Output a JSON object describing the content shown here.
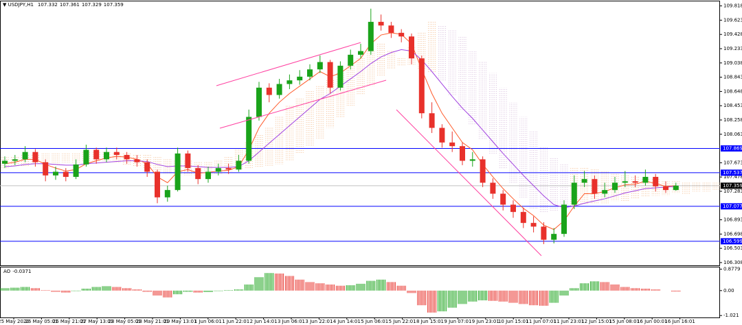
{
  "chart_data": {
    "type": "candlestick",
    "title": "USDJPY,H1",
    "quote": [
      107.332,
      107.361,
      107.329,
      107.359
    ],
    "open": [
      107.66,
      107.7,
      107.72,
      107.82,
      107.68,
      107.5,
      107.55,
      107.48,
      107.65,
      107.85,
      107.72,
      107.82,
      107.78,
      107.72,
      107.68,
      107.55,
      107.2,
      107.3,
      107.8,
      107.6,
      107.45,
      107.55,
      107.6,
      107.58,
      107.7,
      108.3,
      108.7,
      108.6,
      108.75,
      108.8,
      108.85,
      108.95,
      109.05,
      108.7,
      109.0,
      109.15,
      109.2,
      109.6,
      109.55,
      109.45,
      109.4,
      109.1,
      108.35,
      108.15,
      107.95,
      107.9,
      107.7,
      107.72,
      107.4,
      107.25,
      107.1,
      107.0,
      106.85,
      106.8,
      106.62,
      106.7,
      107.1,
      107.4,
      107.45,
      107.25,
      107.3,
      107.4,
      107.42,
      107.4,
      107.48,
      107.35,
      107.3
    ],
    "high": [
      107.76,
      107.78,
      107.9,
      107.86,
      107.72,
      107.62,
      107.6,
      107.72,
      107.92,
      107.88,
      107.88,
      107.88,
      107.82,
      107.78,
      107.72,
      107.58,
      107.36,
      107.88,
      107.84,
      107.64,
      107.62,
      107.66,
      107.66,
      107.78,
      108.4,
      108.78,
      108.76,
      108.82,
      108.88,
      108.94,
      109.02,
      109.14,
      109.08,
      109.06,
      109.22,
      109.3,
      109.78,
      109.7,
      109.6,
      109.5,
      109.44,
      109.14,
      108.5,
      108.2,
      108.1,
      107.95,
      107.82,
      107.76,
      107.46,
      107.3,
      107.16,
      107.06,
      106.94,
      106.86,
      106.78,
      107.16,
      107.5,
      107.56,
      107.5,
      107.4,
      107.48,
      107.56,
      107.5,
      107.58,
      107.52,
      107.42,
      107.4
    ],
    "low": [
      107.6,
      107.64,
      107.68,
      107.62,
      107.42,
      107.44,
      107.42,
      107.45,
      107.62,
      107.66,
      107.68,
      107.72,
      107.66,
      107.62,
      107.48,
      107.12,
      107.14,
      107.28,
      107.55,
      107.38,
      107.4,
      107.5,
      107.52,
      107.55,
      107.66,
      108.25,
      108.5,
      108.55,
      108.68,
      108.74,
      108.8,
      108.9,
      108.62,
      108.66,
      108.95,
      109.1,
      109.15,
      109.48,
      109.38,
      109.32,
      109.02,
      108.28,
      108.08,
      107.88,
      107.82,
      107.64,
      107.62,
      107.34,
      107.18,
      107.02,
      106.92,
      106.78,
      106.72,
      106.56,
      106.57,
      106.66,
      107.04,
      107.34,
      107.18,
      107.2,
      107.26,
      107.34,
      107.34,
      107.36,
      107.28,
      107.26,
      107.29
    ],
    "close": [
      107.7,
      107.72,
      107.82,
      107.68,
      107.5,
      107.55,
      107.48,
      107.65,
      107.85,
      107.72,
      107.82,
      107.78,
      107.72,
      107.68,
      107.55,
      107.2,
      107.3,
      107.8,
      107.6,
      107.45,
      107.55,
      107.6,
      107.58,
      107.7,
      108.3,
      108.7,
      108.6,
      108.75,
      108.8,
      108.85,
      108.95,
      109.05,
      108.7,
      109.0,
      109.15,
      109.2,
      109.6,
      109.55,
      109.45,
      109.4,
      109.1,
      108.35,
      108.15,
      107.95,
      107.9,
      107.7,
      107.72,
      107.4,
      107.25,
      107.1,
      107.0,
      106.85,
      106.8,
      106.62,
      106.7,
      107.1,
      107.4,
      107.45,
      107.25,
      107.3,
      107.4,
      107.42,
      107.4,
      107.48,
      107.35,
      107.3,
      107.36
    ],
    "up_color": "#1aa31a",
    "down_color": "#e8312b",
    "moving_averages": [
      {
        "color": "#ff5a2a",
        "values": [
          107.66,
          107.68,
          107.72,
          107.72,
          107.65,
          107.6,
          107.56,
          107.58,
          107.66,
          107.7,
          107.74,
          107.76,
          107.75,
          107.72,
          107.66,
          107.48,
          107.4,
          107.55,
          107.58,
          107.53,
          107.54,
          107.56,
          107.57,
          107.62,
          107.85,
          108.15,
          108.35,
          108.5,
          108.62,
          108.72,
          108.82,
          108.92,
          108.85,
          108.9,
          109.0,
          109.1,
          109.3,
          109.42,
          109.45,
          109.43,
          109.3,
          108.95,
          108.62,
          108.35,
          108.15,
          107.95,
          107.85,
          107.65,
          107.48,
          107.32,
          107.18,
          107.05,
          106.95,
          106.82,
          106.76,
          106.88,
          107.08,
          107.25,
          107.25,
          107.28,
          107.33,
          107.37,
          107.38,
          107.42,
          107.39,
          107.35,
          107.36
        ]
      },
      {
        "color": "#a040e0",
        "values": [
          107.62,
          107.63,
          107.65,
          107.66,
          107.66,
          107.65,
          107.64,
          107.64,
          107.66,
          107.67,
          107.68,
          107.69,
          107.7,
          107.7,
          107.69,
          107.65,
          107.62,
          107.63,
          107.63,
          107.62,
          107.61,
          107.61,
          107.61,
          107.62,
          107.7,
          107.82,
          107.94,
          108.06,
          108.18,
          108.3,
          108.42,
          108.54,
          108.62,
          108.72,
          108.82,
          108.92,
          109.03,
          109.12,
          109.18,
          109.22,
          109.2,
          109.08,
          108.92,
          108.75,
          108.58,
          108.42,
          108.28,
          108.12,
          107.96,
          107.8,
          107.65,
          107.5,
          107.36,
          107.22,
          107.1,
          107.06,
          107.08,
          107.12,
          107.15,
          107.18,
          107.22,
          107.26,
          107.29,
          107.32,
          107.33,
          107.34,
          107.35
        ]
      }
    ],
    "cloud": {
      "bull_color": "#f2b27c",
      "bear_color": "#cfb0d6",
      "span_a": [
        107.75,
        107.75,
        107.78,
        107.78,
        107.8,
        107.8,
        107.8,
        107.8,
        107.82,
        107.82,
        107.82,
        107.8,
        107.8,
        107.78,
        107.78,
        107.75,
        107.72,
        107.7,
        107.7,
        107.68,
        107.68,
        107.7,
        107.75,
        107.85,
        107.95,
        108.05,
        108.15,
        108.3,
        108.45,
        108.55,
        108.65,
        108.72,
        108.8,
        108.9,
        109.0,
        109.1,
        109.2,
        109.3,
        109.2,
        109.1,
        109.25,
        109.45,
        109.6,
        108.8,
        108.6,
        108.4,
        108.2,
        108.0,
        107.8,
        107.6,
        107.4,
        107.2,
        107.05,
        107.0,
        107.02,
        107.05,
        107.6,
        107.6,
        107.58,
        107.55,
        107.52,
        107.5,
        107.48,
        107.45,
        107.45,
        107.42,
        107.42,
        107.4,
        107.4,
        107.4,
        107.4
      ],
      "span_b": [
        107.6,
        107.62,
        107.62,
        107.65,
        107.65,
        107.65,
        107.68,
        107.68,
        107.68,
        107.7,
        107.7,
        107.68,
        107.65,
        107.62,
        107.6,
        107.55,
        107.52,
        107.5,
        107.5,
        107.5,
        107.5,
        107.52,
        107.55,
        107.58,
        107.6,
        107.62,
        107.62,
        107.65,
        107.7,
        107.8,
        107.9,
        108.0,
        108.15,
        108.3,
        108.45,
        108.6,
        108.72,
        108.85,
        108.95,
        109.0,
        109.0,
        108.95,
        108.9,
        109.55,
        109.5,
        109.4,
        109.2,
        109.05,
        108.9,
        108.7,
        108.5,
        108.3,
        108.1,
        107.9,
        107.75,
        107.65,
        107.08,
        107.1,
        107.12,
        107.12,
        107.15,
        107.15,
        107.18,
        107.2,
        107.22,
        107.22,
        107.25,
        107.25,
        107.28,
        107.28,
        107.3
      ]
    },
    "levels": [
      107.869,
      107.537,
      107.077,
      106.599
    ],
    "level_color": "#0000ff",
    "last": 107.359,
    "ylim": [
      106.27,
      109.88
    ],
    "yticks": [
      109.818,
      109.623,
      109.428,
      109.233,
      109.038,
      108.843,
      108.648,
      108.453,
      108.258,
      108.063,
      107.673,
      107.478,
      107.283,
      106.893,
      106.698,
      106.503,
      106.308
    ],
    "xticks": [
      "25 May 2020",
      "26 May 05:01",
      "26 May 21:01",
      "27 May 13:01",
      "28 May 05:01",
      "28 May 21:01",
      "29 May 13:01",
      "1 Jun 06:01",
      "1 Jun 22:01",
      "2 Jun 14:01",
      "3 Jun 06:01",
      "3 Jun 22:01",
      "4 Jun 14:01",
      "5 Jun 06:01",
      "5 Jun 22:01",
      "8 Jun 15:01",
      "9 Jun 07:01",
      "9 Jun 23:01",
      "10 Jun 15:01",
      "11 Jun 07:01",
      "11 Jun 23:01",
      "12 Jun 15:01",
      "15 Jun 08:01",
      "16 Jun 00:01",
      "16 Jun 16:01"
    ],
    "ao": {
      "name": "AO",
      "current": -0.0371,
      "up_color": "#1aa31a",
      "down_color": "#e8312b",
      "values": [
        0.1,
        0.12,
        0.15,
        0.1,
        0.02,
        -0.05,
        -0.08,
        -0.02,
        0.08,
        0.15,
        0.18,
        0.15,
        0.1,
        0.05,
        -0.05,
        -0.2,
        -0.28,
        -0.15,
        -0.05,
        -0.08,
        -0.06,
        -0.02,
        0.02,
        0.05,
        0.25,
        0.55,
        0.72,
        0.7,
        0.6,
        0.45,
        0.35,
        0.3,
        0.25,
        0.2,
        0.22,
        0.28,
        0.4,
        0.45,
        0.35,
        0.2,
        -0.1,
        -0.6,
        -0.9,
        -0.85,
        -0.7,
        -0.55,
        -0.45,
        -0.4,
        -0.42,
        -0.45,
        -0.5,
        -0.55,
        -0.6,
        -0.62,
        -0.5,
        -0.2,
        0.1,
        0.3,
        0.38,
        0.35,
        0.25,
        0.15,
        0.1,
        0.08,
        0.05,
        0.0,
        -0.04
      ],
      "ylim": [
        -1.1,
        0.95
      ],
      "yticks": [
        0.8779,
        {
          "value": 0,
          "label": "0.00"
        },
        -1.021
      ]
    }
  }
}
